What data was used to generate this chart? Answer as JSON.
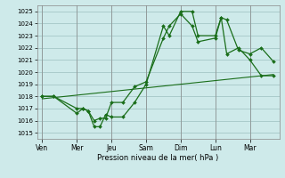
{
  "background_color": "#ceeaea",
  "grid_color": "#aacccc",
  "line_color": "#1a6e1a",
  "x_tick_labels": [
    "Ven",
    "Mer",
    "Jeu",
    "Sam",
    "Dim",
    "Lun",
    "Mar"
  ],
  "x_tick_positions": [
    0,
    1,
    2,
    3,
    4,
    5,
    6
  ],
  "xlabel": "Pression niveau de la mer( hPa )",
  "ylim": [
    1014.5,
    1025.5
  ],
  "xlim": [
    -0.15,
    6.85
  ],
  "yticks": [
    1015,
    1016,
    1017,
    1018,
    1019,
    1020,
    1021,
    1022,
    1023,
    1024,
    1025
  ],
  "line1_x": [
    0.0,
    0.33,
    1.0,
    1.17,
    1.33,
    1.5,
    1.67,
    1.83,
    2.0,
    2.33,
    2.67,
    3.0,
    3.5,
    3.67,
    4.0,
    4.33,
    4.5,
    5.0,
    5.17,
    5.33,
    5.67,
    6.0,
    6.33,
    6.67
  ],
  "line1_y": [
    1018.0,
    1018.0,
    1016.6,
    1017.0,
    1016.8,
    1015.5,
    1015.5,
    1016.5,
    1016.3,
    1016.3,
    1017.5,
    1019.0,
    1023.8,
    1023.0,
    1025.0,
    1025.0,
    1023.0,
    1023.0,
    1024.5,
    1024.3,
    1021.8,
    1021.5,
    1022.0,
    1020.9
  ],
  "line2_x": [
    0.0,
    0.33,
    1.0,
    1.17,
    1.33,
    1.5,
    1.67,
    1.83,
    2.0,
    2.33,
    2.67,
    3.0,
    3.5,
    3.67,
    4.0,
    4.33,
    4.5,
    5.0,
    5.17,
    5.33,
    5.67,
    6.0,
    6.33,
    6.67
  ],
  "line2_y": [
    1018.0,
    1018.0,
    1017.0,
    1017.0,
    1016.8,
    1016.0,
    1016.2,
    1016.2,
    1017.5,
    1017.5,
    1018.8,
    1019.2,
    1022.8,
    1023.8,
    1024.8,
    1023.8,
    1022.5,
    1022.8,
    1024.5,
    1021.5,
    1022.0,
    1021.0,
    1019.7,
    1019.7
  ],
  "trend_x": [
    0.0,
    6.67
  ],
  "trend_y": [
    1017.8,
    1019.8
  ]
}
